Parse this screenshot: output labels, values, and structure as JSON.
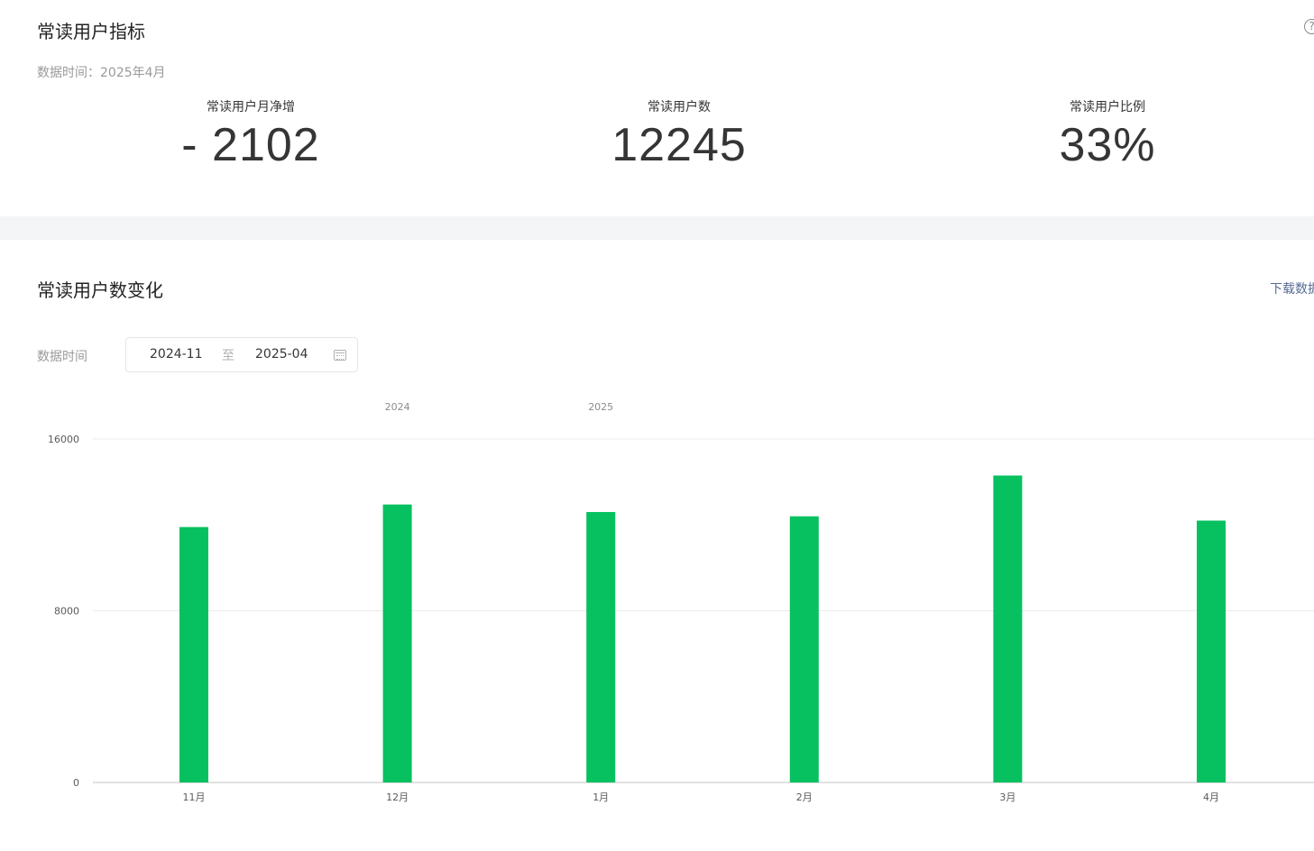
{
  "overview": {
    "title": "常读用户指标",
    "help_icon": "question-icon",
    "data_time": "数据时间：2025年4月",
    "metrics": [
      {
        "label": "常读用户月净增",
        "value": "- 2102"
      },
      {
        "label": "常读用户数",
        "value": "12245"
      },
      {
        "label": "常读用户比例",
        "value": "33%"
      }
    ]
  },
  "trend": {
    "title": "常读用户数变化",
    "download_label": "下载数据",
    "range_label": "数据时间",
    "range_start": "2024-11",
    "range_sep": "至",
    "range_end": "2025-04",
    "calendar_icon": "calendar-icon"
  },
  "colors": {
    "bar": "#07c160",
    "grid": "#ebebeb",
    "axis": "#d9d9d9"
  },
  "chart_data": {
    "type": "bar",
    "categories": [
      "11月",
      "12月",
      "1月",
      "2月",
      "3月",
      "4月"
    ],
    "year_labels": [
      {
        "text": "2024",
        "category_index": 1
      },
      {
        "text": "2025",
        "category_index": 2
      }
    ],
    "values": [
      11900,
      12950,
      12600,
      12400,
      14300,
      12200
    ],
    "ylim": [
      0,
      16000
    ],
    "yticks": [
      0,
      8000,
      16000
    ],
    "grid": true,
    "legend": "none"
  }
}
